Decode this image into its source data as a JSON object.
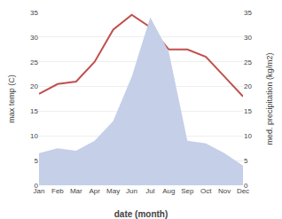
{
  "chart_data": {
    "type": "line",
    "xlabel": "date (month)",
    "ylabel": "max temp (C)",
    "y2label": "med. precipitation (kg/m2)",
    "categories": [
      "Jan",
      "Feb",
      "Mar",
      "Apr",
      "May",
      "Jun",
      "Jul",
      "Aug",
      "Sep",
      "Oct",
      "Nov",
      "Dec"
    ],
    "series": [
      {
        "type": "area",
        "axis": "y2",
        "color": "#c5cfe8",
        "values": [
          6.5,
          7.5,
          7.0,
          9.0,
          13.0,
          22.0,
          34.0,
          27.0,
          9.0,
          8.5,
          6.5,
          4.0
        ]
      },
      {
        "type": "line",
        "color": "#c0504d",
        "values": [
          18.5,
          20.5,
          21.0,
          25.0,
          31.5,
          34.5,
          32.0,
          27.5,
          27.5,
          26.0,
          22.0,
          18.0
        ]
      }
    ],
    "ylim": [
      0,
      35
    ],
    "yticks": [
      0,
      5,
      10,
      15,
      20,
      25,
      30,
      35
    ],
    "y2lim": [
      0,
      35
    ],
    "y2ticks": [
      0,
      5,
      10,
      15,
      20,
      25,
      30,
      35
    ],
    "grid": true
  }
}
